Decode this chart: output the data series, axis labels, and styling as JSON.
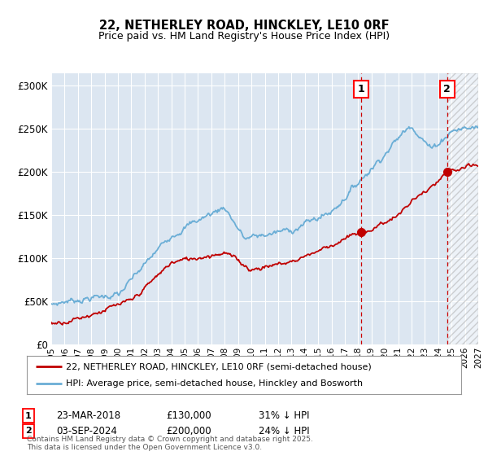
{
  "title": "22, NETHERLEY ROAD, HINCKLEY, LE10 0RF",
  "subtitle": "Price paid vs. HM Land Registry's House Price Index (HPI)",
  "ylabel_ticks": [
    "£0",
    "£50K",
    "£100K",
    "£150K",
    "£200K",
    "£250K",
    "£300K"
  ],
  "ytick_values": [
    0,
    50000,
    100000,
    150000,
    200000,
    250000,
    300000
  ],
  "ylim": [
    0,
    315000
  ],
  "xlim_start": 1995,
  "xlim_end": 2027,
  "hpi_color": "#6baed6",
  "price_color": "#c00000",
  "vline_color": "#cc0000",
  "bg_color": "#dce6f1",
  "hatch_color": "#c8d8ec",
  "plot_bg": "#ffffff",
  "grid_color": "#ffffff",
  "transaction1_date": "23-MAR-2018",
  "transaction1_price": 130000,
  "transaction1_hpi_pct": "31%",
  "transaction1_year": 2018.22,
  "transaction2_date": "03-SEP-2024",
  "transaction2_price": 200000,
  "transaction2_hpi_pct": "24%",
  "transaction2_year": 2024.67,
  "legend_line1": "22, NETHERLEY ROAD, HINCKLEY, LE10 0RF (semi-detached house)",
  "legend_line2": "HPI: Average price, semi-detached house, Hinckley and Bosworth",
  "footer": "Contains HM Land Registry data © Crown copyright and database right 2025.\nThis data is licensed under the Open Government Licence v3.0.",
  "xtick_years": [
    1995,
    1996,
    1997,
    1998,
    1999,
    2000,
    2001,
    2002,
    2003,
    2004,
    2005,
    2006,
    2007,
    2008,
    2009,
    2010,
    2011,
    2012,
    2013,
    2014,
    2015,
    2016,
    2017,
    2018,
    2019,
    2020,
    2021,
    2022,
    2023,
    2024,
    2025,
    2026,
    2027
  ]
}
